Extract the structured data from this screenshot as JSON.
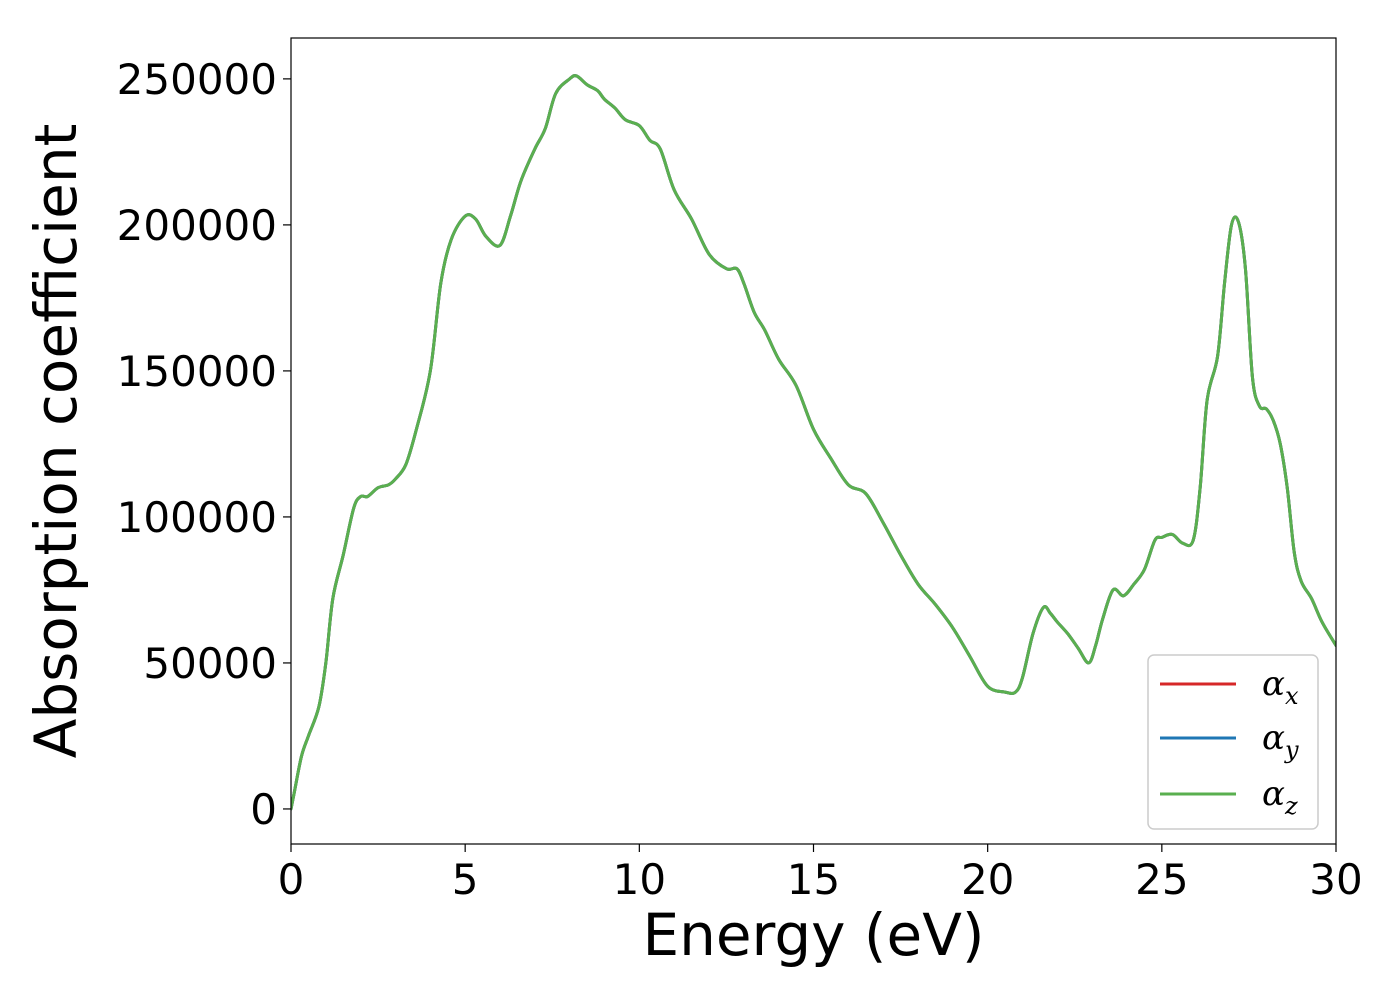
{
  "chart_data": {
    "type": "line",
    "xlabel": "Energy (eV)",
    "ylabel": "Absorption coefficient",
    "xlim": [
      0,
      30
    ],
    "ylim": [
      -12000,
      264000
    ],
    "xticks": [
      0,
      5,
      10,
      15,
      20,
      25,
      30
    ],
    "xtick_labels": [
      "0",
      "5",
      "10",
      "15",
      "20",
      "25",
      "30"
    ],
    "yticks": [
      0,
      50000,
      100000,
      150000,
      200000,
      250000
    ],
    "ytick_labels": [
      "0",
      "50000",
      "100000",
      "150000",
      "200000",
      "250000"
    ],
    "grid": false,
    "legend_position": "lower-right",
    "x": [
      0,
      0.1,
      0.3,
      0.5,
      0.8,
      1.0,
      1.2,
      1.5,
      1.8,
      2.0,
      2.2,
      2.5,
      2.8,
      3.0,
      3.3,
      3.6,
      4.0,
      4.3,
      4.6,
      5.0,
      5.3,
      5.6,
      6.0,
      6.3,
      6.6,
      7.0,
      7.3,
      7.6,
      8.0,
      8.2,
      8.5,
      8.8,
      9.0,
      9.3,
      9.6,
      10.0,
      10.3,
      10.6,
      11.0,
      11.5,
      12.0,
      12.5,
      12.8,
      13.0,
      13.3,
      13.6,
      14.0,
      14.5,
      15.0,
      15.5,
      16.0,
      16.5,
      17.0,
      17.5,
      18.0,
      18.5,
      19.0,
      19.5,
      20.0,
      20.5,
      20.8,
      21.0,
      21.3,
      21.6,
      21.8,
      22.0,
      22.3,
      22.6,
      22.9,
      23.1,
      23.3,
      23.6,
      23.9,
      24.2,
      24.5,
      24.8,
      25.0,
      25.3,
      25.6,
      25.9,
      26.1,
      26.3,
      26.6,
      26.8,
      27.0,
      27.2,
      27.4,
      27.6,
      27.8,
      28.0,
      28.2,
      28.4,
      28.6,
      28.8,
      29.0,
      29.3,
      29.6,
      30.0
    ],
    "series": [
      {
        "name": "α_x",
        "name_base": "α",
        "name_sub": "x",
        "color": "#d62728",
        "values": [
          0,
          6000,
          18000,
          25000,
          35000,
          50000,
          72000,
          87000,
          103000,
          107000,
          107000,
          110000,
          111000,
          113000,
          118000,
          130000,
          150000,
          180000,
          195000,
          203000,
          202000,
          196000,
          193000,
          203000,
          215000,
          226000,
          233000,
          245000,
          250000,
          251000,
          248000,
          246000,
          243000,
          240000,
          236000,
          234000,
          229000,
          226000,
          212000,
          202000,
          190000,
          185000,
          185000,
          180000,
          170000,
          164000,
          154000,
          145000,
          130000,
          120000,
          111000,
          108000,
          98000,
          87000,
          77000,
          70000,
          62000,
          52000,
          42000,
          40000,
          40000,
          45000,
          60000,
          69000,
          67000,
          64000,
          60000,
          55000,
          50000,
          56000,
          65000,
          75000,
          73000,
          77000,
          82000,
          92000,
          93000,
          94000,
          91000,
          92000,
          110000,
          140000,
          155000,
          180000,
          200000,
          201000,
          185000,
          148000,
          138000,
          137000,
          133000,
          125000,
          110000,
          88000,
          78000,
          72000,
          64000,
          56000
        ]
      },
      {
        "name": "α_y",
        "name_base": "α",
        "name_sub": "y",
        "color": "#1f77b4",
        "values": [
          0,
          6000,
          18000,
          25000,
          35000,
          50000,
          72000,
          87000,
          103000,
          107000,
          107000,
          110000,
          111000,
          113000,
          118000,
          130000,
          150000,
          180000,
          195000,
          203000,
          202000,
          196000,
          193000,
          203000,
          215000,
          226000,
          233000,
          245000,
          250000,
          251000,
          248000,
          246000,
          243000,
          240000,
          236000,
          234000,
          229000,
          226000,
          212000,
          202000,
          190000,
          185000,
          185000,
          180000,
          170000,
          164000,
          154000,
          145000,
          130000,
          120000,
          111000,
          108000,
          98000,
          87000,
          77000,
          70000,
          62000,
          52000,
          42000,
          40000,
          40000,
          45000,
          60000,
          69000,
          67000,
          64000,
          60000,
          55000,
          50000,
          56000,
          65000,
          75000,
          73000,
          77000,
          82000,
          92000,
          93000,
          94000,
          91000,
          92000,
          110000,
          140000,
          155000,
          180000,
          200000,
          201000,
          185000,
          148000,
          138000,
          137000,
          133000,
          125000,
          110000,
          88000,
          78000,
          72000,
          64000,
          56000
        ]
      },
      {
        "name": "α_z",
        "name_base": "α",
        "name_sub": "z",
        "color": "#5aaf4f",
        "values": [
          0,
          6000,
          18000,
          25000,
          35000,
          50000,
          72000,
          87000,
          103000,
          107000,
          107000,
          110000,
          111000,
          113000,
          118000,
          130000,
          150000,
          180000,
          195000,
          203000,
          202000,
          196000,
          193000,
          203000,
          215000,
          226000,
          233000,
          245000,
          250000,
          251000,
          248000,
          246000,
          243000,
          240000,
          236000,
          234000,
          229000,
          226000,
          212000,
          202000,
          190000,
          185000,
          185000,
          180000,
          170000,
          164000,
          154000,
          145000,
          130000,
          120000,
          111000,
          108000,
          98000,
          87000,
          77000,
          70000,
          62000,
          52000,
          42000,
          40000,
          40000,
          45000,
          60000,
          69000,
          67000,
          64000,
          60000,
          55000,
          50000,
          56000,
          65000,
          75000,
          73000,
          77000,
          82000,
          92000,
          93000,
          94000,
          91000,
          92000,
          110000,
          140000,
          155000,
          180000,
          200000,
          201000,
          185000,
          148000,
          138000,
          137000,
          133000,
          125000,
          110000,
          88000,
          78000,
          72000,
          64000,
          56000
        ]
      }
    ]
  }
}
